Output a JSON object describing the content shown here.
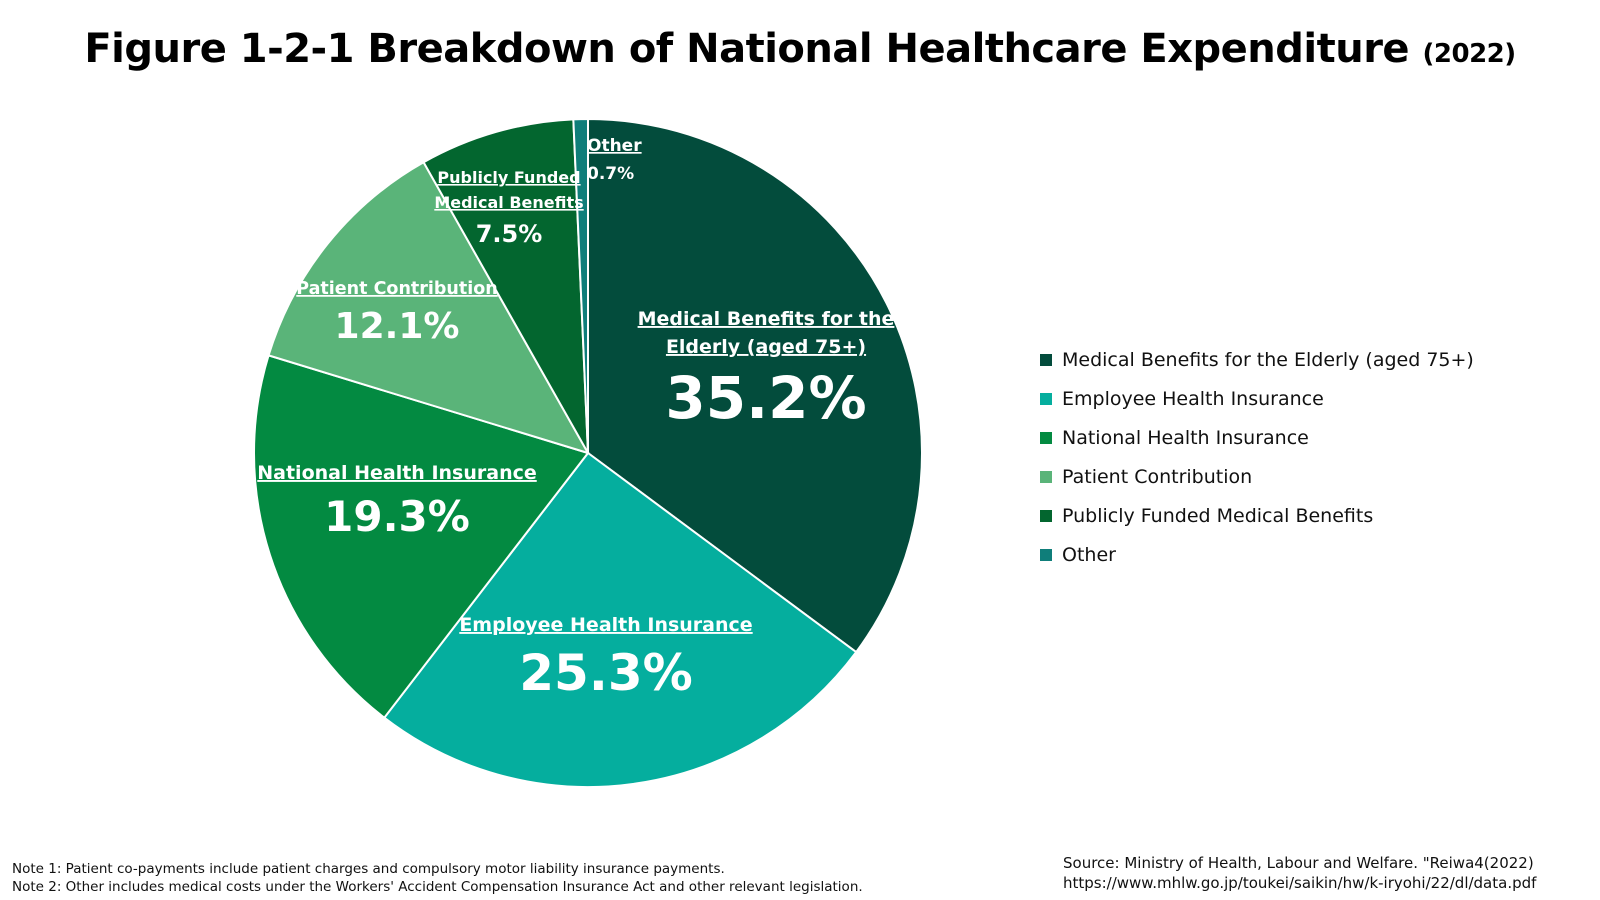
{
  "title": "Figure 1-2-1 Breakdown of National Healthcare Expenditure",
  "title_year": "(2022)",
  "chart_data": {
    "type": "pie",
    "categories": [
      "Medical Benefits for the Elderly (aged 75+)",
      "Employee Health Insurance",
      "National Health Insurance",
      "Patient Contribution",
      "Publicly Funded Medical Benefits",
      "Other"
    ],
    "values": [
      35.2,
      25.3,
      19.3,
      12.1,
      7.5,
      0.7
    ],
    "value_labels": [
      "35.2%",
      "25.3%",
      "19.3%",
      "12.1%",
      "7.5%",
      "0.7%"
    ],
    "slice_labels": [
      [
        "Medical Benefits for the",
        "Elderly (aged 75+)"
      ],
      [
        "Employee Health Insurance"
      ],
      [
        "National Health Insurance"
      ],
      [
        "Patient Contribution"
      ],
      [
        "Publicly Funded",
        "Medical Benefits"
      ],
      [
        "Other"
      ]
    ],
    "colors": [
      "#034C3C",
      "#05AE9E",
      "#038A41",
      "#5AB479",
      "#03662F",
      "#0F7E7A"
    ],
    "start_angle_deg": 0,
    "direction": "clockwise",
    "legend_position": "right"
  },
  "notes": [
    "Note 1: Patient co-payments include patient charges and compulsory motor liability insurance payments.",
    "Note 2: Other includes medical costs under the Workers' Accident Compensation Insurance Act and other relevant legislation."
  ],
  "source": [
    "Source: Ministry of Health, Labour and Welfare. \"Reiwa4(2022)",
    "https://www.mhlw.go.jp/toukei/saikin/hw/k-iryohi/22/dl/data.pdf"
  ]
}
